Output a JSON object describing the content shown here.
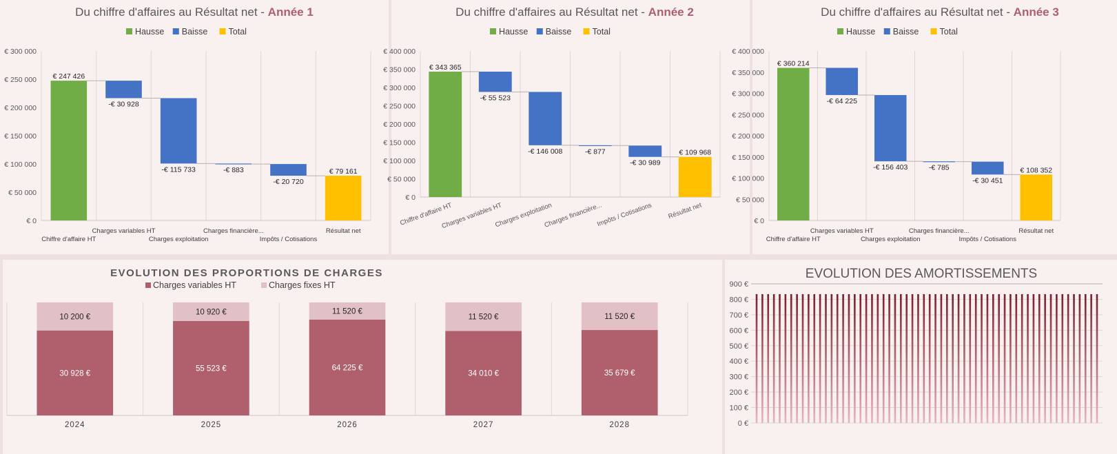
{
  "colors": {
    "hausse": "#70ad47",
    "baisse": "#4472c4",
    "total": "#ffc000",
    "title_gray": "#595959",
    "title_accent": "#b05f6d",
    "charges_variables": "#b05f6d",
    "charges_fixes": "#e1c1c6",
    "amortissement_bar": "#7a1e2e"
  },
  "waterfall_legend": {
    "hausse": "Hausse",
    "baisse": "Baisse",
    "total": "Total"
  },
  "charts": {
    "an1": {
      "title_main": "Du chiffre d'affaires au Résultat net - ",
      "title_year": "Année 1"
    },
    "an2": {
      "title_main": "Du chiffre d'affaires au Résultat net - ",
      "title_year": "Année 2"
    },
    "an3": {
      "title_main": "Du chiffre d'affaires au Résultat net - ",
      "title_year": "Année 3"
    },
    "proportions": {
      "title": "EVOLUTION DES PROPORTIONS DE CHARGES",
      "legend": [
        "Charges variables HT",
        "Charges fixes HT"
      ]
    },
    "amortissements": {
      "title": "EVOLUTION DES AMORTISSEMENTS"
    }
  },
  "chart_data": [
    {
      "type": "waterfall",
      "title": "Du chiffre d'affaires au Résultat net - Année 1",
      "categories": [
        "Chiffre d'affaire HT",
        "Charges variables HT",
        "Charges exploitation",
        "Charges financière...",
        "Impôts / Cotisations",
        "Résultat net"
      ],
      "values": [
        247426,
        -30928,
        -115733,
        -883,
        -20720,
        79161
      ],
      "kinds": [
        "hausse",
        "baisse",
        "baisse",
        "baisse",
        "baisse",
        "total"
      ],
      "value_labels": [
        "€ 247 426",
        "-€ 30 928",
        "-€ 115 733",
        "-€ 883",
        "-€ 20 720",
        "€ 79 161"
      ],
      "ylim": [
        0,
        300000
      ],
      "yticks": [
        0,
        50000,
        100000,
        150000,
        200000,
        250000,
        300000
      ],
      "ytick_labels": [
        "€ 0",
        "€ 50 000",
        "€ 100 000",
        "€ 150 000",
        "€ 200 000",
        "€ 250 000",
        "€ 300 000"
      ],
      "legend": [
        "Hausse",
        "Baisse",
        "Total"
      ],
      "legend_position": "top",
      "grid": "vertical",
      "xlabel_style": "staggered"
    },
    {
      "type": "waterfall",
      "title": "Du chiffre d'affaires au Résultat net - Année 2",
      "categories": [
        "Chiffre d'affaire HT",
        "Charges variables HT",
        "Charges exploitation",
        "Charges financière...",
        "Impôts / Cotisations",
        "Résultat net"
      ],
      "values": [
        343365,
        -55523,
        -146008,
        -877,
        -30989,
        109968
      ],
      "kinds": [
        "hausse",
        "baisse",
        "baisse",
        "baisse",
        "baisse",
        "total"
      ],
      "value_labels": [
        "€ 343 365",
        "-€ 55 523",
        "-€ 146 008",
        "-€ 877",
        "-€ 30 989",
        "€ 109 968"
      ],
      "ylim": [
        0,
        400000
      ],
      "yticks": [
        0,
        50000,
        100000,
        150000,
        200000,
        250000,
        300000,
        350000,
        400000
      ],
      "ytick_labels": [
        "€ 0",
        "€ 50 000",
        "€ 100 000",
        "€ 150 000",
        "€ 200 000",
        "€ 250 000",
        "€ 300 000",
        "€ 350 000",
        "€ 400 000"
      ],
      "legend": [
        "Hausse",
        "Baisse",
        "Total"
      ],
      "legend_position": "top",
      "grid": "vertical",
      "xlabel_style": "rotated"
    },
    {
      "type": "waterfall",
      "title": "Du chiffre d'affaires au Résultat net - Année 3",
      "categories": [
        "Chiffre d'affaire HT",
        "Charges variables HT",
        "Charges exploitation",
        "Charges financière...",
        "Impôts / Cotisations",
        "Résultat net"
      ],
      "values": [
        360214,
        -64225,
        -156403,
        -785,
        -30451,
        108352
      ],
      "kinds": [
        "hausse",
        "baisse",
        "baisse",
        "baisse",
        "baisse",
        "total"
      ],
      "value_labels": [
        "€ 360 214",
        "-€ 64 225",
        "-€ 156 403",
        "-€ 785",
        "-€ 30 451",
        "€ 108 352"
      ],
      "ylim": [
        0,
        400000
      ],
      "yticks": [
        0,
        50000,
        100000,
        150000,
        200000,
        250000,
        300000,
        350000,
        400000
      ],
      "ytick_labels": [
        "€ 0",
        "€ 50 000",
        "€ 100 000",
        "€ 150 000",
        "€ 200 000",
        "€ 250 000",
        "€ 300 000",
        "€ 350 000",
        "€ 400 000"
      ],
      "legend": [
        "Hausse",
        "Baisse",
        "Total"
      ],
      "legend_position": "top",
      "grid": "vertical",
      "xlabel_style": "staggered"
    },
    {
      "type": "bar",
      "stacked": true,
      "percent": true,
      "title": "EVOLUTION DES PROPORTIONS DE CHARGES",
      "categories": [
        "2024",
        "2025",
        "2026",
        "2027",
        "2028"
      ],
      "series": [
        {
          "name": "Charges variables HT",
          "values": [
            30928,
            55523,
            64225,
            34010,
            35679
          ],
          "labels": [
            "30 928 €",
            "55 523 €",
            "64 225 €",
            "34 010 €",
            "35 679 €"
          ]
        },
        {
          "name": "Charges fixes HT",
          "values": [
            10200,
            10920,
            11520,
            11520,
            11520
          ],
          "labels": [
            "10 200 €",
            "10 920 €",
            "11 520 €",
            "11 520 €",
            "11 520 €"
          ]
        }
      ],
      "legend_position": "top",
      "grid": "vertical"
    },
    {
      "type": "bar",
      "title": "EVOLUTION DES AMORTISSEMENTS",
      "bar_count": 60,
      "value": 833.33,
      "ylim": [
        0,
        900
      ],
      "yticks": [
        0,
        100,
        200,
        300,
        400,
        500,
        600,
        700,
        800,
        900
      ],
      "ytick_labels": [
        "0 €",
        "100 €",
        "200 €",
        "300 €",
        "400 €",
        "500 €",
        "600 €",
        "700 €",
        "800 €",
        "900 €"
      ],
      "grid": "horizontal"
    }
  ]
}
